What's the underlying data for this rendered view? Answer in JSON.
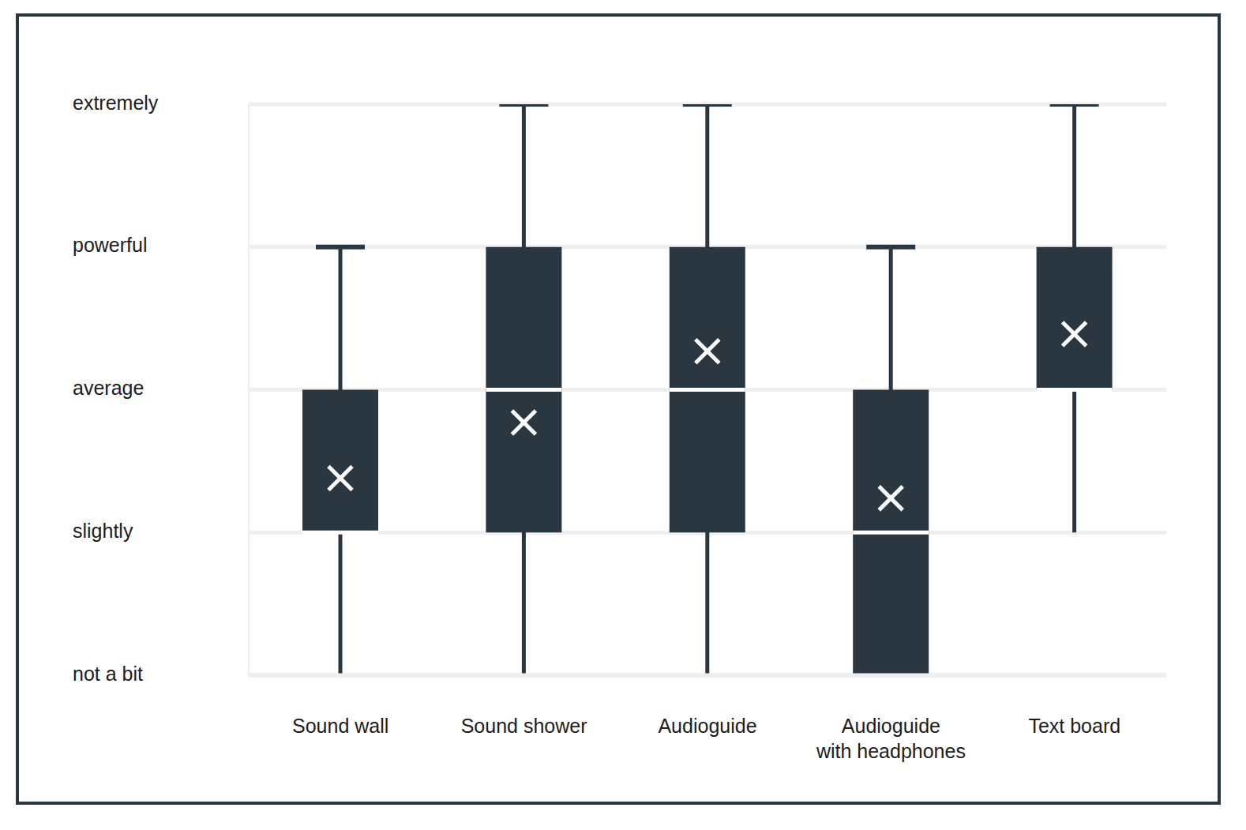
{
  "chart_data": {
    "type": "box",
    "categories": [
      "Sound wall",
      "Sound shower",
      "Audioguide",
      "Audioguide with headphones",
      "Text board"
    ],
    "boxes": [
      {
        "min": 0,
        "q1": 1,
        "median": 1,
        "q3": 2,
        "max": 3,
        "mean": 1.38
      },
      {
        "min": 0,
        "q1": 1,
        "median": 2,
        "q3": 3,
        "max": 4,
        "mean": 1.77
      },
      {
        "min": 0,
        "q1": 1,
        "median": 2,
        "q3": 3,
        "max": 4,
        "mean": 2.27
      },
      {
        "min": 0,
        "q1": 0,
        "median": 1,
        "q3": 2,
        "max": 3,
        "mean": 1.24
      },
      {
        "min": 1,
        "q1": 2,
        "median": 2,
        "q3": 3,
        "max": 4,
        "mean": 2.39
      }
    ],
    "color": "#2b3740",
    "marker": "x",
    "ylim": [
      0,
      4
    ],
    "yticks": [
      {
        "value": 0,
        "label": "not a bit"
      },
      {
        "value": 1,
        "label": "slightly"
      },
      {
        "value": 2,
        "label": "average"
      },
      {
        "value": 3,
        "label": "powerful"
      },
      {
        "value": 4,
        "label": "extremely"
      }
    ],
    "grid": true
  }
}
